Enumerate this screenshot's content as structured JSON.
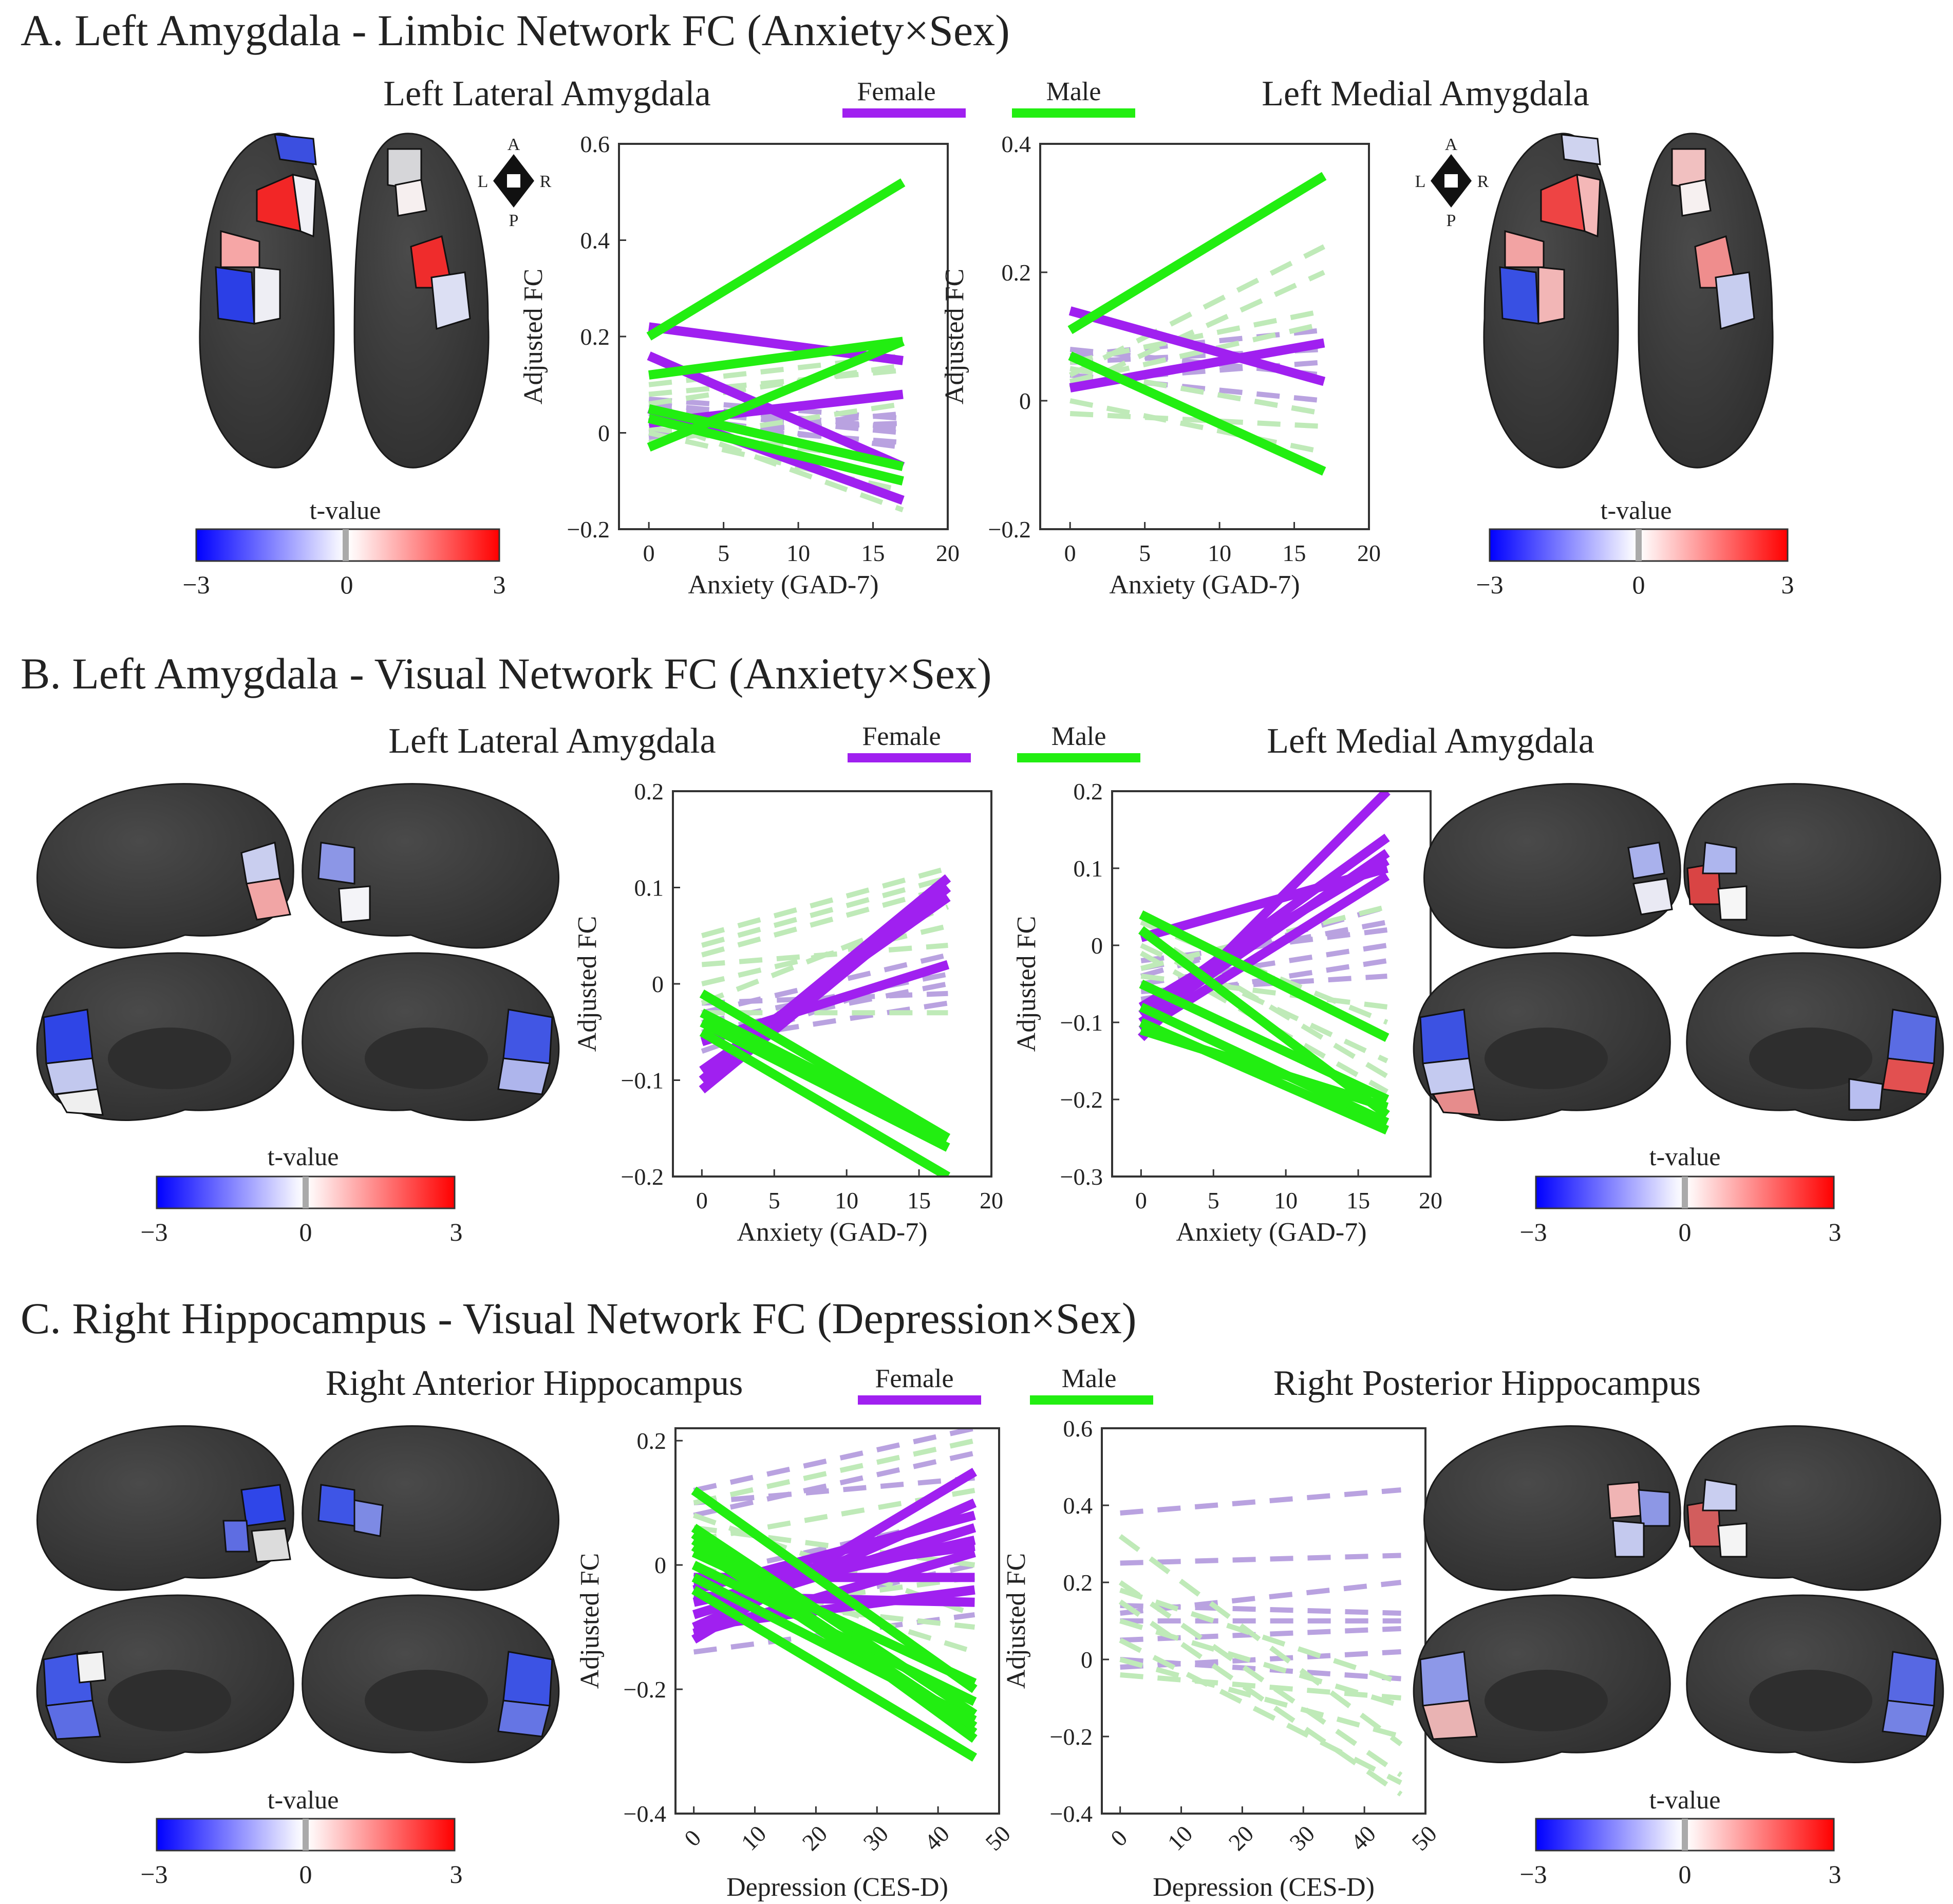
{
  "colors": {
    "female": "#a020f0",
    "male": "#22ee11",
    "female_faint": "#b9a2e0",
    "male_faint": "#bfeab8",
    "brain_base": "#3a3a3a",
    "brain_shade": "#2a2a2a",
    "region_edge": "#111111",
    "axis": "#333333",
    "cb_negative": "#0000ff",
    "cb_neutral": "#ffffff",
    "cb_positive": "#ff0000",
    "cb_zero_marker": "#aaaaaa"
  },
  "legend": {
    "female": "Female",
    "male": "Male"
  },
  "orientation": {
    "anterior": "A",
    "posterior": "P",
    "left": "L",
    "right": "R"
  },
  "panels": [
    {
      "id": "A",
      "title": "A.  Left Amygdala - Limbic Network FC (Anxiety×Sex)",
      "left_subtitle": "Left Lateral Amygdala",
      "right_subtitle": "Left Medial Amygdala",
      "colorbar": {
        "title": "t-value",
        "ticks": [
          "−3",
          "0",
          "3"
        ]
      }
    },
    {
      "id": "B",
      "title": "B.  Left Amygdala - Visual Network FC (Anxiety×Sex)",
      "left_subtitle": "Left Lateral Amygdala",
      "right_subtitle": "Left Medial Amygdala",
      "colorbar": {
        "title": "t-value",
        "ticks": [
          "−3",
          "0",
          "3"
        ]
      }
    },
    {
      "id": "C",
      "title": "C.  Right Hippocampus - Visual Network FC (Depression×Sex)",
      "left_subtitle": "Right Anterior Hippocampus",
      "right_subtitle": "Right Posterior Hippocampus",
      "colorbar": {
        "title": "t-value",
        "ticks": [
          "−3",
          "0",
          "3"
        ]
      }
    }
  ],
  "chart_data": [
    {
      "id": "A1",
      "type": "line",
      "xlabel": "Anxiety (GAD-7)",
      "ylabel": "Adjusted FC",
      "xlim": [
        -2,
        20
      ],
      "ylim": [
        -0.2,
        0.6
      ],
      "xticks": [
        0,
        5,
        10,
        15,
        20
      ],
      "xtick_labels": [
        "0",
        "5",
        "10",
        "15",
        "20"
      ],
      "yticks": [
        -0.2,
        0,
        0.2,
        0.4,
        0.6
      ],
      "ytick_labels": [
        "−0.2",
        "0",
        "0.2",
        "0.4",
        "0.6"
      ],
      "x_range": [
        0,
        17
      ],
      "rotate_xticks": false,
      "series": [
        {
          "name": "Female",
          "style": "solid",
          "lines": [
            [
              0.22,
              0.15
            ],
            [
              0.16,
              -0.07
            ],
            [
              0.02,
              0.08
            ],
            [
              0.05,
              -0.14
            ]
          ]
        },
        {
          "name": "Male",
          "style": "solid",
          "lines": [
            [
              0.2,
              0.52
            ],
            [
              0.12,
              0.19
            ],
            [
              -0.03,
              0.19
            ],
            [
              0.05,
              -0.07
            ],
            [
              0.03,
              -0.1
            ]
          ]
        },
        {
          "name": "Female",
          "style": "dashed",
          "lines": [
            [
              0.05,
              0.0
            ],
            [
              0.07,
              0.03
            ],
            [
              0.02,
              -0.02
            ],
            [
              0.0,
              0.02
            ],
            [
              0.04,
              -0.03
            ],
            [
              0.06,
              0.01
            ],
            [
              -0.01,
              0.04
            ]
          ]
        },
        {
          "name": "Male",
          "style": "dashed",
          "lines": [
            [
              0.03,
              -0.16
            ],
            [
              0.0,
              -0.12
            ],
            [
              0.08,
              0.13
            ],
            [
              0.06,
              0.14
            ],
            [
              -0.02,
              0.06
            ],
            [
              0.1,
              0.16
            ],
            [
              0.01,
              -0.06
            ]
          ]
        }
      ]
    },
    {
      "id": "A2",
      "type": "line",
      "xlabel": "Anxiety (GAD-7)",
      "ylabel": "Adjusted FC",
      "xlim": [
        -2,
        20
      ],
      "ylim": [
        -0.2,
        0.4
      ],
      "xticks": [
        0,
        5,
        10,
        15,
        20
      ],
      "xtick_labels": [
        "0",
        "5",
        "10",
        "15",
        "20"
      ],
      "yticks": [
        -0.2,
        0,
        0.2,
        0.4
      ],
      "ytick_labels": [
        "−0.2",
        "0",
        "0.2",
        "0.4"
      ],
      "x_range": [
        0,
        17
      ],
      "rotate_xticks": false,
      "series": [
        {
          "name": "Female",
          "style": "solid",
          "lines": [
            [
              0.14,
              0.03
            ],
            [
              0.02,
              0.09
            ]
          ]
        },
        {
          "name": "Male",
          "style": "solid",
          "lines": [
            [
              0.11,
              0.35
            ],
            [
              0.07,
              -0.11
            ]
          ]
        },
        {
          "name": "Female",
          "style": "dashed",
          "lines": [
            [
              0.06,
              0.08
            ],
            [
              0.04,
              0.0
            ],
            [
              0.08,
              0.04
            ],
            [
              0.03,
              0.06
            ],
            [
              0.05,
              -0.02
            ],
            [
              0.07,
              0.11
            ]
          ]
        },
        {
          "name": "Male",
          "style": "dashed",
          "lines": [
            [
              0.04,
              0.24
            ],
            [
              0.02,
              0.2
            ],
            [
              0.06,
              0.14
            ],
            [
              -0.02,
              -0.04
            ],
            [
              0.0,
              -0.08
            ],
            [
              0.03,
              0.12
            ],
            [
              0.05,
              -0.02
            ]
          ]
        }
      ]
    },
    {
      "id": "B1",
      "type": "line",
      "xlabel": "Anxiety (GAD-7)",
      "ylabel": "Adjusted FC",
      "xlim": [
        -2,
        20
      ],
      "ylim": [
        -0.2,
        0.2
      ],
      "xticks": [
        0,
        5,
        10,
        15,
        20
      ],
      "xtick_labels": [
        "0",
        "5",
        "10",
        "15",
        "20"
      ],
      "yticks": [
        -0.2,
        -0.1,
        0,
        0.1,
        0.2
      ],
      "ytick_labels": [
        "−0.2",
        "−0.1",
        "0",
        "0.1",
        "0.2"
      ],
      "x_range": [
        0,
        17
      ],
      "rotate_xticks": false,
      "series": [
        {
          "name": "Female",
          "style": "solid",
          "lines": [
            [
              -0.11,
              0.1
            ],
            [
              -0.1,
              0.11
            ],
            [
              -0.09,
              0.09
            ],
            [
              -0.06,
              0.02
            ]
          ]
        },
        {
          "name": "Male",
          "style": "solid",
          "lines": [
            [
              -0.01,
              -0.16
            ],
            [
              -0.04,
              -0.17
            ],
            [
              -0.05,
              -0.2
            ],
            [
              -0.03,
              -0.16
            ]
          ]
        },
        {
          "name": "Female",
          "style": "dashed",
          "lines": [
            [
              -0.04,
              0.01
            ],
            [
              -0.06,
              -0.02
            ],
            [
              -0.03,
              0.03
            ],
            [
              -0.05,
              0.0
            ],
            [
              -0.02,
              -0.01
            ],
            [
              -0.07,
              0.02
            ]
          ]
        },
        {
          "name": "Male",
          "style": "dashed",
          "lines": [
            [
              0.05,
              0.12
            ],
            [
              0.03,
              0.1
            ],
            [
              -0.02,
              0.08
            ],
            [
              0.0,
              0.06
            ],
            [
              0.04,
              0.11
            ],
            [
              -0.03,
              -0.03
            ],
            [
              0.02,
              0.04
            ]
          ]
        }
      ]
    },
    {
      "id": "B2",
      "type": "line",
      "xlabel": "Anxiety (GAD-7)",
      "ylabel": "Adjusted FC",
      "xlim": [
        -2,
        20
      ],
      "ylim": [
        -0.3,
        0.2
      ],
      "xticks": [
        0,
        5,
        10,
        15,
        20
      ],
      "xtick_labels": [
        "0",
        "5",
        "10",
        "15",
        "20"
      ],
      "yticks": [
        -0.3,
        -0.2,
        -0.1,
        0,
        0.1,
        0.2
      ],
      "ytick_labels": [
        "−0.3",
        "−0.2",
        "−0.1",
        "0",
        "0.1",
        "0.2"
      ],
      "x_range": [
        0,
        17
      ],
      "rotate_xticks": false,
      "series": [
        {
          "name": "Female",
          "style": "solid",
          "lines": [
            [
              0.01,
              0.1
            ],
            [
              -0.12,
              0.2
            ],
            [
              -0.09,
              0.14
            ],
            [
              -0.1,
              0.12
            ],
            [
              -0.11,
              0.09
            ],
            [
              -0.08,
              0.11
            ]
          ]
        },
        {
          "name": "Male",
          "style": "solid",
          "lines": [
            [
              0.04,
              -0.12
            ],
            [
              0.02,
              -0.22
            ],
            [
              -0.05,
              -0.2
            ],
            [
              -0.08,
              -0.23
            ],
            [
              -0.1,
              -0.24
            ],
            [
              -0.11,
              -0.21
            ]
          ]
        },
        {
          "name": "Female",
          "style": "dashed",
          "lines": [
            [
              -0.05,
              0.0
            ],
            [
              -0.03,
              0.03
            ],
            [
              -0.07,
              -0.02
            ],
            [
              -0.04,
              0.05
            ],
            [
              -0.06,
              -0.04
            ],
            [
              -0.02,
              0.02
            ]
          ]
        },
        {
          "name": "Male",
          "style": "dashed",
          "lines": [
            [
              0.02,
              -0.17
            ],
            [
              -0.01,
              -0.19
            ],
            [
              0.0,
              -0.15
            ],
            [
              0.03,
              -0.1
            ],
            [
              -0.03,
              0.05
            ],
            [
              0.01,
              0.1
            ],
            [
              -0.04,
              -0.08
            ]
          ]
        }
      ]
    },
    {
      "id": "C1",
      "type": "line",
      "xlabel": "Depression (CES-D)",
      "ylabel": "Adjusted FC",
      "xlim": [
        -3,
        50
      ],
      "ylim": [
        -0.4,
        0.22
      ],
      "xticks": [
        0,
        10,
        20,
        30,
        40,
        50
      ],
      "xtick_labels": [
        "0",
        "10",
        "20",
        "30",
        "40",
        "50"
      ],
      "yticks": [
        -0.4,
        -0.2,
        0,
        0.2
      ],
      "ytick_labels": [
        "−0.4",
        "−0.2",
        "0",
        "0.2"
      ],
      "x_range": [
        0,
        46
      ],
      "rotate_xticks": true,
      "series": [
        {
          "name": "Female",
          "style": "solid",
          "lines": [
            [
              -0.12,
              0.15
            ],
            [
              -0.1,
              0.1
            ],
            [
              -0.08,
              0.06
            ],
            [
              -0.06,
              0.04
            ],
            [
              -0.02,
              -0.02
            ],
            [
              -0.1,
              -0.04
            ],
            [
              -0.04,
              0.08
            ],
            [
              -0.11,
              0.02
            ],
            [
              -0.05,
              -0.06
            ],
            [
              -0.03,
              0.03
            ]
          ]
        },
        {
          "name": "Male",
          "style": "solid",
          "lines": [
            [
              0.12,
              -0.2
            ],
            [
              0.06,
              -0.24
            ],
            [
              0.03,
              -0.27
            ],
            [
              -0.04,
              -0.31
            ],
            [
              0.0,
              -0.22
            ],
            [
              0.05,
              -0.28
            ],
            [
              -0.02,
              -0.25
            ],
            [
              0.02,
              -0.19
            ],
            [
              0.04,
              -0.26
            ]
          ]
        },
        {
          "name": "Female",
          "style": "dashed",
          "lines": [
            [
              0.12,
              0.22
            ],
            [
              0.1,
              0.14
            ],
            [
              -0.02,
              0.08
            ],
            [
              -0.06,
              0.04
            ],
            [
              0.08,
              0.18
            ],
            [
              -0.1,
              0.0
            ],
            [
              -0.14,
              -0.08
            ]
          ]
        },
        {
          "name": "Male",
          "style": "dashed",
          "lines": [
            [
              0.08,
              -0.08
            ],
            [
              0.1,
              0.2
            ],
            [
              -0.05,
              -0.1
            ],
            [
              0.04,
              0.12
            ],
            [
              0.0,
              -0.14
            ],
            [
              -0.08,
              -0.02
            ],
            [
              0.06,
              0.0
            ]
          ]
        }
      ]
    },
    {
      "id": "C2",
      "type": "line",
      "xlabel": "Depression (CES-D)",
      "ylabel": "Adjusted FC",
      "xlim": [
        -3,
        50
      ],
      "ylim": [
        -0.4,
        0.6
      ],
      "xticks": [
        0,
        10,
        20,
        30,
        40,
        50
      ],
      "xtick_labels": [
        "0",
        "10",
        "20",
        "30",
        "40",
        "50"
      ],
      "yticks": [
        -0.4,
        -0.2,
        0,
        0.2,
        0.4,
        0.6
      ],
      "ytick_labels": [
        "−0.4",
        "−0.2",
        "0",
        "0.2",
        "0.4",
        "0.6"
      ],
      "x_range": [
        0,
        46
      ],
      "rotate_xticks": true,
      "series": [
        {
          "name": "Female",
          "style": "solid",
          "lines": []
        },
        {
          "name": "Male",
          "style": "solid",
          "lines": []
        },
        {
          "name": "Female",
          "style": "dashed",
          "lines": [
            [
              0.38,
              0.44
            ],
            [
              0.25,
              0.27
            ],
            [
              0.12,
              0.2
            ],
            [
              0.05,
              0.08
            ],
            [
              0.1,
              0.1
            ],
            [
              -0.02,
              0.02
            ],
            [
              0.14,
              0.12
            ],
            [
              0.0,
              -0.05
            ]
          ]
        },
        {
          "name": "Male",
          "style": "dashed",
          "lines": [
            [
              0.32,
              -0.22
            ],
            [
              0.2,
              -0.3
            ],
            [
              0.15,
              -0.35
            ],
            [
              0.05,
              -0.32
            ],
            [
              0.1,
              -0.12
            ],
            [
              0.0,
              -0.2
            ],
            [
              0.18,
              -0.06
            ],
            [
              -0.04,
              -0.1
            ]
          ]
        }
      ]
    }
  ]
}
